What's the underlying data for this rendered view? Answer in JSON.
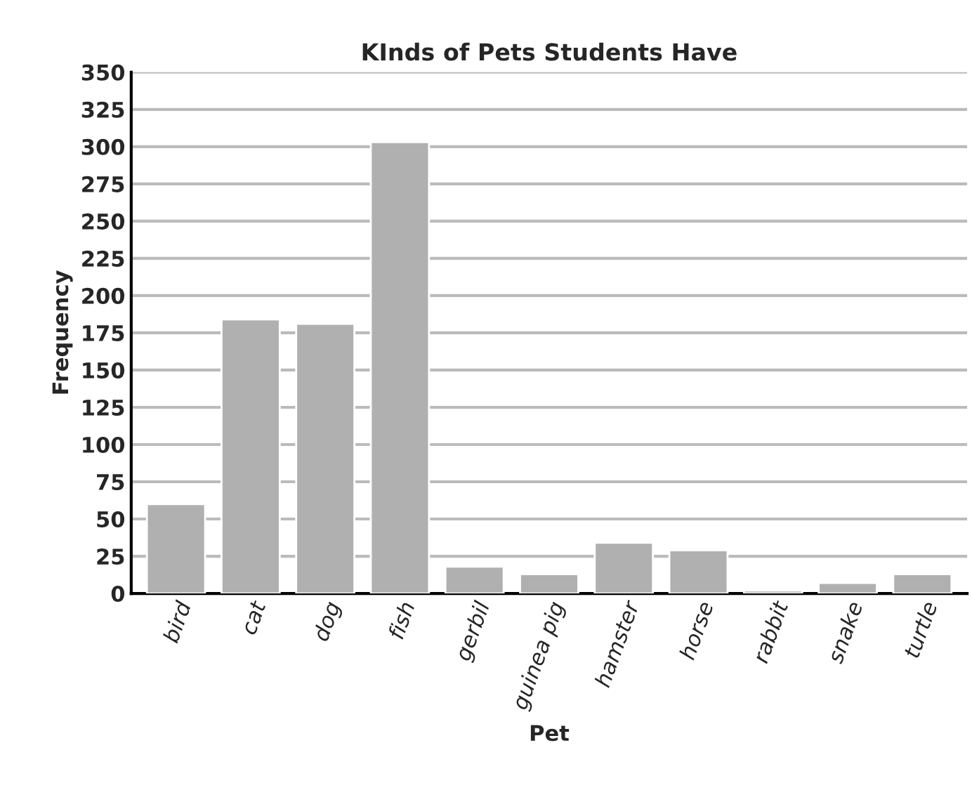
{
  "chart_data": {
    "type": "bar",
    "title": "KInds of Pets Students Have",
    "xlabel": "Pet",
    "ylabel": "Frequency",
    "categories": [
      "bird",
      "cat",
      "dog",
      "fish",
      "gerbil",
      "guinea pig",
      "hamster",
      "horse",
      "rabbit",
      "snake",
      "turtle"
    ],
    "values": [
      60,
      184,
      181,
      303,
      18,
      13,
      34,
      29,
      2,
      7,
      13
    ],
    "color": "#b0b0b0",
    "ylim": [
      0,
      350
    ],
    "yticks": [
      0,
      25,
      50,
      75,
      100,
      125,
      150,
      175,
      200,
      225,
      250,
      275,
      300,
      325,
      350
    ],
    "grid": "y"
  }
}
